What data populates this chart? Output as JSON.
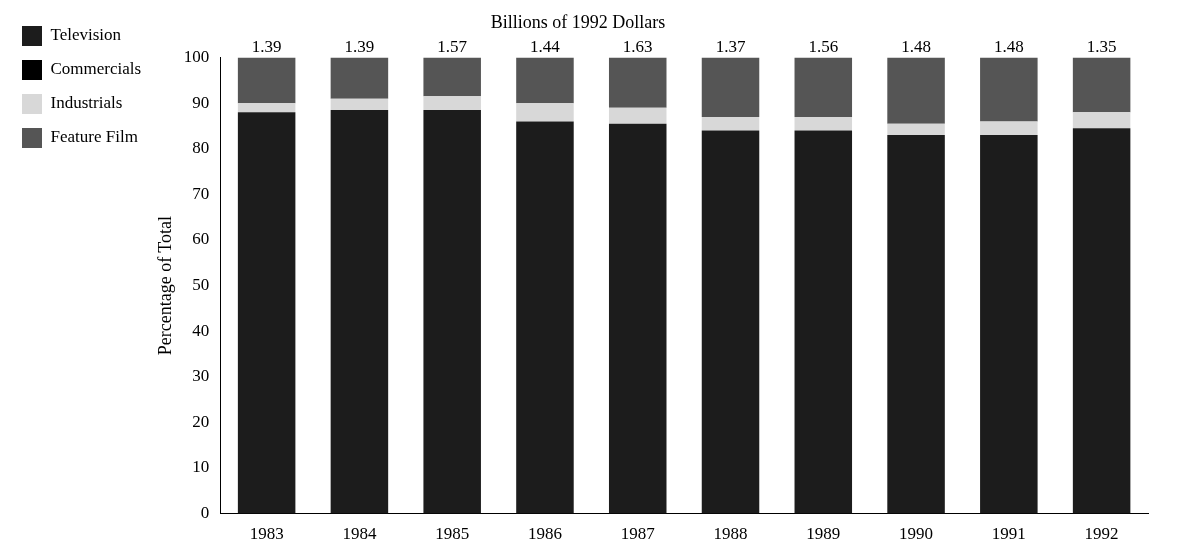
{
  "chart_data": {
    "type": "bar",
    "stacked": true,
    "title": "Billions of 1992 Dollars",
    "ylabel": "Percentage of Total",
    "categories": [
      "1983",
      "1984",
      "1985",
      "1986",
      "1987",
      "1988",
      "1989",
      "1990",
      "1991",
      "1992"
    ],
    "series": [
      {
        "name": "Television",
        "color": "#1c1c1c",
        "values": [
          88,
          88.5,
          88.5,
          86,
          85.5,
          84,
          84,
          83,
          83,
          84.5
        ]
      },
      {
        "name": "Commercials",
        "color": "#000000",
        "values": [
          null,
          null,
          null,
          null,
          null,
          null,
          null,
          null,
          null,
          null
        ]
      },
      {
        "name": "Industrials",
        "color": "#d8d8d8",
        "values": [
          2,
          2.5,
          3,
          4,
          3.5,
          3,
          3,
          2.5,
          3,
          3.5
        ]
      },
      {
        "name": "Feature Film",
        "color": "#555555",
        "values": [
          10,
          9,
          8.5,
          10,
          11,
          13,
          13,
          14.5,
          14,
          12
        ]
      }
    ],
    "annotations": [
      "1.39",
      "1.39",
      "1.57",
      "1.44",
      "1.63",
      "1.37",
      "1.56",
      "1.48",
      "1.48",
      "1.35"
    ],
    "ylim": [
      0,
      100
    ],
    "yticks": [
      0,
      10,
      20,
      30,
      40,
      50,
      60,
      70,
      80,
      90,
      100
    ],
    "grid": false,
    "legend": "left"
  }
}
